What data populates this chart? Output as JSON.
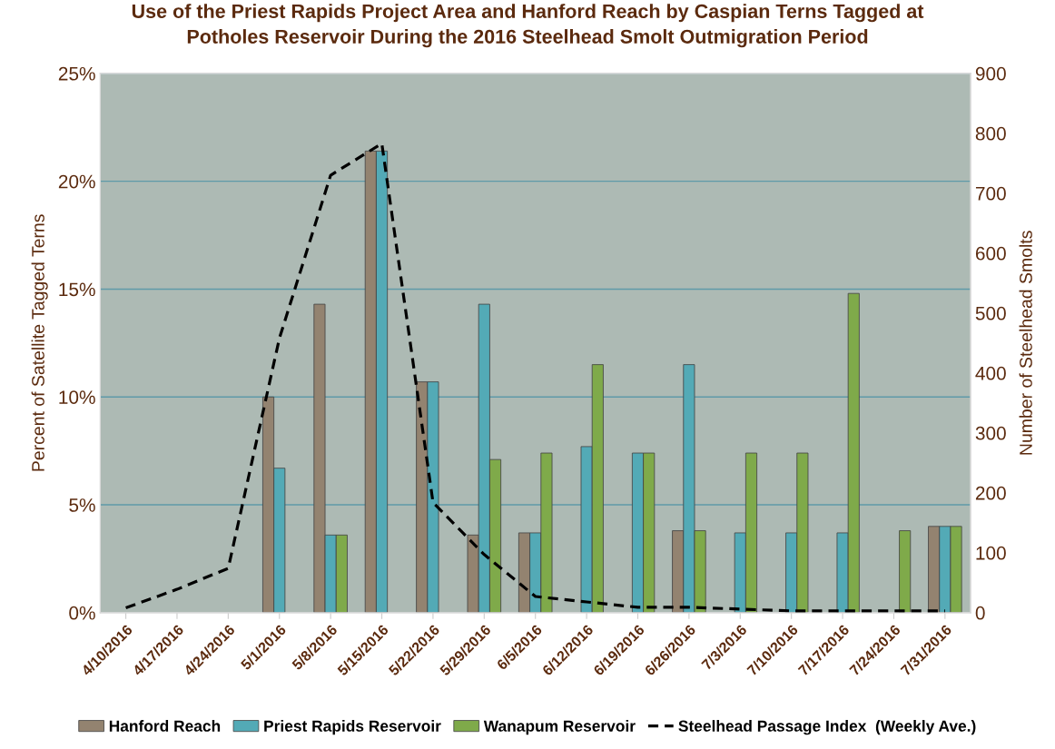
{
  "chart_data": {
    "type": "bar",
    "title": "Use of the Priest Rapids Project Area and Hanford Reach by Caspian Terns Tagged at\nPotholes Reservoir During the 2016 Steelhead Smolt Outmigration Period",
    "ylabel": "Percent of Satellite Tagged Terns",
    "y2label": "Number of Steelhead Smolts",
    "categories": [
      "4/10/2016",
      "4/17/2016",
      "4/24/2016",
      "5/1/2016",
      "5/8/2016",
      "5/15/2016",
      "5/22/2016",
      "5/29/2016",
      "6/5/2016",
      "6/12/2016",
      "6/19/2016",
      "6/26/2016",
      "7/3/2016",
      "7/10/2016",
      "7/17/2016",
      "7/24/2016",
      "7/31/2016"
    ],
    "series": [
      {
        "name": "Hanford Reach",
        "color": "#938370",
        "values": [
          null,
          null,
          null,
          10.0,
          14.3,
          21.4,
          10.7,
          3.6,
          3.7,
          null,
          null,
          3.8,
          null,
          null,
          null,
          null,
          4.0
        ]
      },
      {
        "name": "Priest Rapids Reservoir",
        "color": "#53aab6",
        "values": [
          null,
          null,
          null,
          6.7,
          3.6,
          21.4,
          10.7,
          14.3,
          3.7,
          7.7,
          7.4,
          11.5,
          3.7,
          3.7,
          3.7,
          null,
          4.0
        ]
      },
      {
        "name": "Wanapum Reservoir",
        "color": "#7faa4a",
        "values": [
          null,
          null,
          null,
          null,
          3.6,
          null,
          null,
          7.1,
          7.4,
          11.5,
          7.4,
          3.8,
          7.4,
          7.4,
          14.8,
          3.8,
          4.0
        ]
      },
      {
        "name": "Steelhead Passage Index  (Weekly Ave.)",
        "type": "line",
        "axis": "y2",
        "color": "#000000",
        "line_style": "dashed",
        "values": [
          8,
          39,
          74,
          458,
          730,
          783,
          184,
          97,
          27,
          18,
          9,
          9,
          6,
          3,
          3,
          3,
          3
        ]
      }
    ],
    "ylim": [
      0,
      25
    ],
    "yticks": [
      {
        "value": 0,
        "label": "0%"
      },
      {
        "value": 5,
        "label": "5%"
      },
      {
        "value": 10,
        "label": "10%"
      },
      {
        "value": 15,
        "label": "15%"
      },
      {
        "value": 20,
        "label": "20%"
      },
      {
        "value": 25,
        "label": "25%"
      }
    ],
    "y2lim": [
      0,
      900
    ],
    "y2ticks": [
      0,
      100,
      200,
      300,
      400,
      500,
      600,
      700,
      800,
      900
    ],
    "grid": "y",
    "legend": "bottom",
    "marker": "none"
  }
}
